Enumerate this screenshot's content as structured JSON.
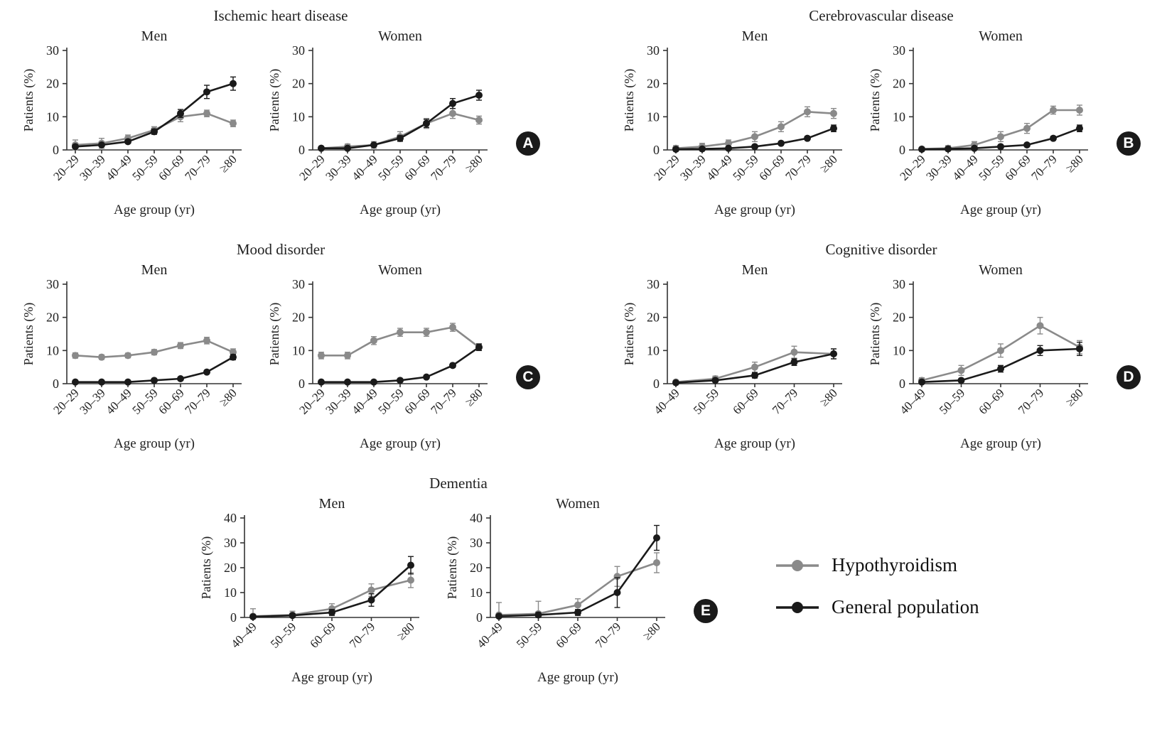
{
  "legend": {
    "items": [
      {
        "label": "Hypothyroidism",
        "color": "#8a8a8a"
      },
      {
        "label": "General population",
        "color": "#1a1a1a"
      }
    ]
  },
  "chart_data": [
    {
      "type": "line",
      "badge": "A",
      "title": "Ischemic heart disease",
      "subplots": [
        {
          "subtitle": "Men",
          "xlabel": "Age group (yr)",
          "ylabel": "Patients (%)",
          "categories": [
            "20–29",
            "30–39",
            "40–49",
            "50–59",
            "60–69",
            "70–79",
            "≥80"
          ],
          "ylim": [
            0,
            30
          ],
          "yticks": [
            0,
            10,
            20,
            30
          ],
          "series": [
            {
              "name": "Hypothyroidism",
              "color": "#8a8a8a",
              "values": [
                1.5,
                2,
                3.5,
                6,
                10,
                11,
                8
              ],
              "errors": [
                1.5,
                1.5,
                1,
                1,
                1.5,
                1,
                1
              ]
            },
            {
              "name": "General population",
              "color": "#1a1a1a",
              "values": [
                1,
                1.5,
                2.5,
                5.5,
                11,
                17.5,
                20
              ],
              "errors": [
                0.3,
                0.3,
                0.5,
                0.8,
                1.2,
                2,
                2
              ]
            }
          ]
        },
        {
          "subtitle": "Women",
          "xlabel": "Age group (yr)",
          "ylabel": "Patients (%)",
          "categories": [
            "20–29",
            "30–39",
            "40–49",
            "50–59",
            "60–69",
            "70–79",
            "≥80"
          ],
          "ylim": [
            0,
            30
          ],
          "yticks": [
            0,
            10,
            20,
            30
          ],
          "series": [
            {
              "name": "Hypothyroidism",
              "color": "#8a8a8a",
              "values": [
                0.5,
                1,
                1.5,
                4,
                8,
                11,
                9
              ],
              "errors": [
                0.5,
                0.8,
                1,
                1.5,
                1.5,
                1.5,
                1.2
              ]
            },
            {
              "name": "General population",
              "color": "#1a1a1a",
              "values": [
                0.5,
                0.5,
                1.5,
                3.5,
                8,
                14,
                16.5
              ],
              "errors": [
                0.2,
                0.2,
                0.4,
                0.8,
                1.2,
                1.5,
                1.5
              ]
            }
          ]
        }
      ]
    },
    {
      "type": "line",
      "badge": "B",
      "title": "Cerebrovascular disease",
      "subplots": [
        {
          "subtitle": "Men",
          "xlabel": "Age group (yr)",
          "ylabel": "Patients (%)",
          "categories": [
            "20–29",
            "30–39",
            "40–49",
            "50–59",
            "60–69",
            "70–79",
            "≥80"
          ],
          "ylim": [
            0,
            30
          ],
          "yticks": [
            0,
            10,
            20,
            30
          ],
          "series": [
            {
              "name": "Hypothyroidism",
              "color": "#8a8a8a",
              "values": [
                0.5,
                1,
                2,
                4,
                7,
                11.5,
                11
              ],
              "errors": [
                0.8,
                1,
                1,
                1.5,
                1.5,
                1.5,
                1.5
              ]
            },
            {
              "name": "General population",
              "color": "#1a1a1a",
              "values": [
                0.2,
                0.3,
                0.5,
                1,
                2,
                3.5,
                6.5
              ],
              "errors": [
                0.2,
                0.2,
                0.3,
                0.3,
                0.5,
                0.6,
                1
              ]
            }
          ]
        },
        {
          "subtitle": "Women",
          "xlabel": "Age group (yr)",
          "ylabel": "Patients (%)",
          "categories": [
            "20–29",
            "30–39",
            "40–49",
            "50–59",
            "60–69",
            "70–79",
            "≥80"
          ],
          "ylim": [
            0,
            30
          ],
          "yticks": [
            0,
            10,
            20,
            30
          ],
          "series": [
            {
              "name": "Hypothyroidism",
              "color": "#8a8a8a",
              "values": [
                0.3,
                0.5,
                1.5,
                4,
                6.5,
                12,
                12
              ],
              "errors": [
                0.5,
                0.8,
                1,
                1.5,
                1.5,
                1.2,
                1.5
              ]
            },
            {
              "name": "General population",
              "color": "#1a1a1a",
              "values": [
                0.2,
                0.3,
                0.5,
                1,
                1.5,
                3.5,
                6.5
              ],
              "errors": [
                0.2,
                0.2,
                0.3,
                0.3,
                0.4,
                0.6,
                1
              ]
            }
          ]
        }
      ]
    },
    {
      "type": "line",
      "badge": "C",
      "title": "Mood disorder",
      "subplots": [
        {
          "subtitle": "Men",
          "xlabel": "Age group (yr)",
          "ylabel": "Patients (%)",
          "categories": [
            "20–29",
            "30–39",
            "40–49",
            "50–59",
            "60–69",
            "70–79",
            "≥80"
          ],
          "ylim": [
            0,
            30
          ],
          "yticks": [
            0,
            10,
            20,
            30
          ],
          "series": [
            {
              "name": "Hypothyroidism",
              "color": "#8a8a8a",
              "values": [
                8.5,
                8,
                8.5,
                9.5,
                11.5,
                13,
                9.5
              ],
              "errors": [
                0.8,
                0.7,
                0.7,
                0.8,
                0.9,
                1,
                1
              ]
            },
            {
              "name": "General population",
              "color": "#1a1a1a",
              "values": [
                0.5,
                0.5,
                0.5,
                1,
                1.5,
                3.5,
                8
              ],
              "errors": [
                0.2,
                0.2,
                0.2,
                0.2,
                0.3,
                0.5,
                0.8
              ]
            }
          ]
        },
        {
          "subtitle": "Women",
          "xlabel": "Age group (yr)",
          "ylabel": "Patients (%)",
          "categories": [
            "20–29",
            "30–39",
            "40–49",
            "50–59",
            "60–69",
            "70–79",
            "≥80"
          ],
          "ylim": [
            0,
            30
          ],
          "yticks": [
            0,
            10,
            20,
            30
          ],
          "series": [
            {
              "name": "Hypothyroidism",
              "color": "#8a8a8a",
              "values": [
                8.5,
                8.5,
                13,
                15.5,
                15.5,
                17,
                11
              ],
              "errors": [
                1,
                1,
                1.2,
                1.2,
                1.2,
                1.2,
                1
              ]
            },
            {
              "name": "General population",
              "color": "#1a1a1a",
              "values": [
                0.5,
                0.5,
                0.5,
                1,
                2,
                5.5,
                11
              ],
              "errors": [
                0.2,
                0.2,
                0.2,
                0.3,
                0.4,
                0.6,
                1
              ]
            }
          ]
        }
      ]
    },
    {
      "type": "line",
      "badge": "D",
      "title": "Cognitive disorder",
      "subplots": [
        {
          "subtitle": "Men",
          "xlabel": "Age group (yr)",
          "ylabel": "Patients (%)",
          "categories": [
            "40–49",
            "50–59",
            "60–69",
            "70–79",
            "≥80"
          ],
          "ylim": [
            0,
            30
          ],
          "yticks": [
            0,
            10,
            20,
            30
          ],
          "series": [
            {
              "name": "Hypothyroidism",
              "color": "#8a8a8a",
              "values": [
                0.5,
                1.5,
                5,
                9.5,
                9
              ],
              "errors": [
                0.5,
                0.8,
                1.5,
                1.8,
                1.5
              ]
            },
            {
              "name": "General population",
              "color": "#1a1a1a",
              "values": [
                0.3,
                1,
                2.5,
                6.5,
                9
              ],
              "errors": [
                0.3,
                0.4,
                0.8,
                1,
                1.5
              ]
            }
          ]
        },
        {
          "subtitle": "Women",
          "xlabel": "Age group (yr)",
          "ylabel": "Patients (%)",
          "categories": [
            "40–49",
            "50–59",
            "60–69",
            "70–79",
            "≥80"
          ],
          "ylim": [
            0,
            30
          ],
          "yticks": [
            0,
            10,
            20,
            30
          ],
          "series": [
            {
              "name": "Hypothyroidism",
              "color": "#8a8a8a",
              "values": [
                1,
                4,
                10,
                17.5,
                11
              ],
              "errors": [
                0.8,
                1.5,
                2,
                2.5,
                2
              ]
            },
            {
              "name": "General population",
              "color": "#1a1a1a",
              "values": [
                0.5,
                1,
                4.5,
                10,
                10.5
              ],
              "errors": [
                0.4,
                0.5,
                1,
                1.5,
                2
              ]
            }
          ]
        }
      ]
    },
    {
      "type": "line",
      "badge": "E",
      "title": "Dementia",
      "subplots": [
        {
          "subtitle": "Men",
          "xlabel": "Age group (yr)",
          "ylabel": "Patients (%)",
          "categories": [
            "40–49",
            "50–59",
            "60–69",
            "70–79",
            "≥80"
          ],
          "ylim": [
            0,
            40
          ],
          "yticks": [
            0,
            10,
            20,
            30,
            40
          ],
          "series": [
            {
              "name": "Hypothyroidism",
              "color": "#8a8a8a",
              "values": [
                0.5,
                1,
                3.5,
                11,
                15
              ],
              "errors": [
                3,
                1.5,
                2,
                2.5,
                3
              ]
            },
            {
              "name": "General population",
              "color": "#1a1a1a",
              "values": [
                0.3,
                0.8,
                2,
                7,
                21
              ],
              "errors": [
                0.5,
                0.8,
                1.2,
                2.5,
                3.5
              ]
            }
          ]
        },
        {
          "subtitle": "Women",
          "xlabel": "Age group (yr)",
          "ylabel": "Patients (%)",
          "categories": [
            "40–49",
            "50–59",
            "60–69",
            "70–79",
            "≥80"
          ],
          "ylim": [
            0,
            40
          ],
          "yticks": [
            0,
            10,
            20,
            30,
            40
          ],
          "series": [
            {
              "name": "Hypothyroidism",
              "color": "#8a8a8a",
              "values": [
                1,
                1.5,
                5,
                16.5,
                22
              ],
              "errors": [
                5,
                5,
                2.5,
                4,
                4
              ]
            },
            {
              "name": "General population",
              "color": "#1a1a1a",
              "values": [
                0.5,
                1,
                2,
                10,
                32
              ],
              "errors": [
                0.8,
                1,
                1.2,
                6,
                5
              ]
            }
          ]
        }
      ]
    }
  ]
}
